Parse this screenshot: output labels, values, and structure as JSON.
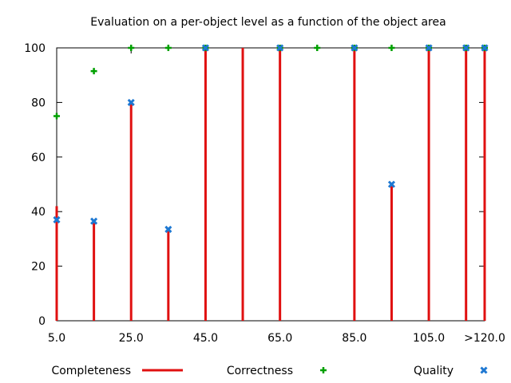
{
  "chart_data": {
    "type": "bar",
    "title": "Evaluation on a per-object level as a function of the object area",
    "xlabel": "",
    "ylabel": "",
    "ylim": [
      0,
      100
    ],
    "y_ticks": [
      0,
      20,
      40,
      60,
      80,
      100
    ],
    "x_positions": [
      5,
      15,
      25,
      35,
      45,
      55,
      65,
      75,
      85,
      95,
      105,
      115,
      120
    ],
    "x_ticks": [
      {
        "x": 5,
        "label": "5.0"
      },
      {
        "x": 25,
        "label": "25.0"
      },
      {
        "x": 45,
        "label": "45.0"
      },
      {
        "x": 65,
        "label": "65.0"
      },
      {
        "x": 85,
        "label": "85.0"
      },
      {
        "x": 105,
        "label": "105.0"
      },
      {
        "x": 120,
        "label": ">120.0"
      }
    ],
    "grid": false,
    "legend_position": "bottom",
    "series": [
      {
        "name": "Completeness",
        "style": "impulses",
        "color": "#e01010",
        "values": [
          42,
          37,
          80,
          33,
          100,
          100,
          100,
          null,
          100,
          50,
          100,
          100,
          100
        ]
      },
      {
        "name": "Correctness",
        "style": "plus",
        "color": "#00a000",
        "values": [
          75,
          91.5,
          100,
          100,
          100,
          null,
          100,
          100,
          100,
          100,
          100,
          100,
          100
        ]
      },
      {
        "name": "Quality",
        "style": "cross",
        "color": "#1e78d2",
        "values": [
          37,
          36.5,
          80,
          33.5,
          100,
          null,
          100,
          null,
          100,
          50,
          100,
          100,
          100
        ]
      }
    ]
  }
}
